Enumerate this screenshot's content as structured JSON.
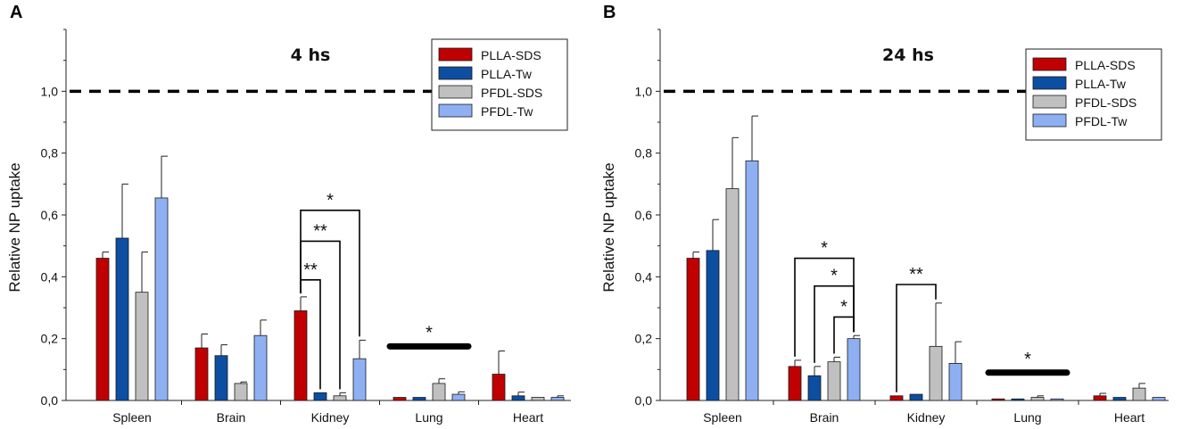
{
  "chart_data": [
    {
      "panel_label": "A",
      "type": "bar",
      "title": "4 hs",
      "ylabel": "Relative NP uptake",
      "xlabel": "",
      "ylim": [
        0,
        1.2
      ],
      "yticks": [
        "0,0",
        "0,2",
        "0,4",
        "0,6",
        "0,8",
        "1,0"
      ],
      "grid": false,
      "legend_position": "top-right",
      "reference_line": {
        "y": 1.0,
        "style": "dashed",
        "x_range": [
          "start",
          "Lung"
        ]
      },
      "categories": [
        "Spleen",
        "Brain",
        "Kidney",
        "Lung",
        "Heart"
      ],
      "series": [
        {
          "name": "PLLA-SDS",
          "color": "#c00000",
          "values": [
            0.46,
            0.17,
            0.29,
            0.01,
            0.085
          ],
          "errors": [
            0.02,
            0.045,
            0.045,
            0.0,
            0.075
          ]
        },
        {
          "name": "PLLA-Tw",
          "color": "#0c4ea2",
          "values": [
            0.525,
            0.145,
            0.025,
            0.01,
            0.015
          ],
          "errors": [
            0.175,
            0.035,
            0.0,
            0.0,
            0.012
          ]
        },
        {
          "name": "PFDL-SDS",
          "color": "#c0c0c0",
          "values": [
            0.35,
            0.055,
            0.015,
            0.055,
            0.01
          ],
          "errors": [
            0.13,
            0.005,
            0.01,
            0.015,
            0.0
          ]
        },
        {
          "name": "PFDL-Tw",
          "color": "#8eb0f2",
          "values": [
            0.655,
            0.21,
            0.135,
            0.02,
            0.01
          ],
          "errors": [
            0.135,
            0.05,
            0.06,
            0.008,
            0.005
          ]
        }
      ],
      "annotations": [
        {
          "type": "bracket",
          "category": "Kidney",
          "from_series": 0,
          "to_series": 3,
          "y": 0.615,
          "label": "*"
        },
        {
          "type": "bracket",
          "category": "Kidney",
          "from_series": 0,
          "to_series": 2,
          "y": 0.515,
          "label": "**"
        },
        {
          "type": "bracket",
          "category": "Kidney",
          "from_series": 0,
          "to_series": 1,
          "y": 0.39,
          "label": "**"
        },
        {
          "type": "bar",
          "category": "Lung",
          "y": 0.175,
          "label": "*"
        }
      ]
    },
    {
      "panel_label": "B",
      "type": "bar",
      "title": "24 hs",
      "ylabel": "Relative NP uptake",
      "xlabel": "",
      "ylim": [
        0,
        1.2
      ],
      "yticks": [
        "0,0",
        "0,2",
        "0,4",
        "0,6",
        "0,8",
        "1,0"
      ],
      "grid": false,
      "legend_position": "top-right",
      "reference_line": {
        "y": 1.0,
        "style": "dashed",
        "x_range": [
          "start",
          "Lung"
        ]
      },
      "categories": [
        "Spleen",
        "Brain",
        "Kidney",
        "Lung",
        "Heart"
      ],
      "series": [
        {
          "name": "PLLA-SDS",
          "color": "#c00000",
          "values": [
            0.46,
            0.11,
            0.015,
            0.005,
            0.015
          ],
          "errors": [
            0.02,
            0.02,
            0.0,
            0.0,
            0.008
          ]
        },
        {
          "name": "PLLA-Tw",
          "color": "#0c4ea2",
          "values": [
            0.485,
            0.08,
            0.02,
            0.005,
            0.01
          ],
          "errors": [
            0.1,
            0.03,
            0.0,
            0.0,
            0.0
          ]
        },
        {
          "name": "PFDL-SDS",
          "color": "#c0c0c0",
          "values": [
            0.685,
            0.125,
            0.175,
            0.01,
            0.04
          ],
          "errors": [
            0.165,
            0.015,
            0.14,
            0.005,
            0.015
          ]
        },
        {
          "name": "PFDL-Tw",
          "color": "#8eb0f2",
          "values": [
            0.775,
            0.2,
            0.12,
            0.005,
            0.01
          ],
          "errors": [
            0.145,
            0.01,
            0.07,
            0.0,
            0.0
          ]
        }
      ],
      "annotations": [
        {
          "type": "bracket",
          "category": "Brain",
          "from_series": 0,
          "to_series": 3,
          "y": 0.46,
          "label": "*"
        },
        {
          "type": "bracket",
          "category": "Brain",
          "from_series": 1,
          "to_series": 3,
          "y": 0.37,
          "label": "*"
        },
        {
          "type": "bracket",
          "category": "Brain",
          "from_series": 2,
          "to_series": 3,
          "y": 0.27,
          "label": "*"
        },
        {
          "type": "bracket",
          "category": "Kidney",
          "from_series": 0,
          "to_series": 2,
          "y": 0.375,
          "label": "**"
        },
        {
          "type": "bar",
          "category": "Lung",
          "y": 0.09,
          "label": "*"
        }
      ]
    }
  ]
}
